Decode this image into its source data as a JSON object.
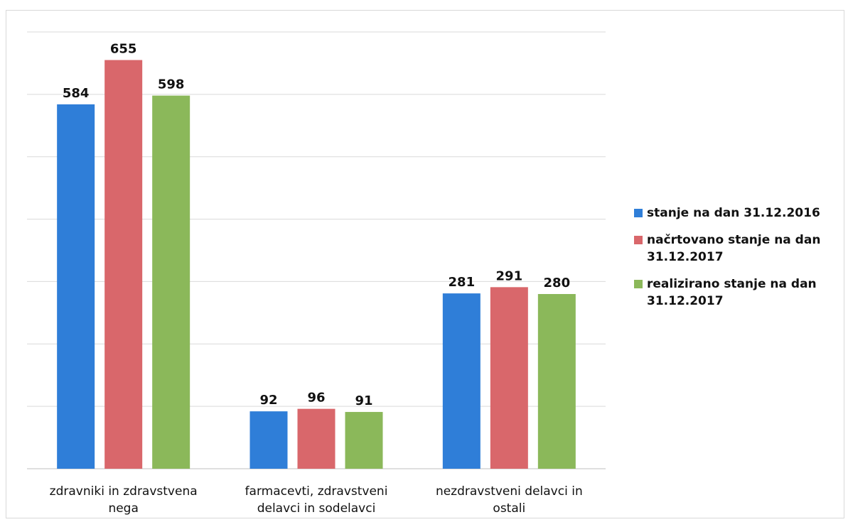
{
  "chart_data": {
    "type": "bar",
    "title": "",
    "xlabel": "",
    "ylabel": "",
    "categories": [
      [
        "zdravniki in zdravstvena",
        "nega"
      ],
      [
        "farmacevti, zdravstveni",
        "delavci in sodelavci"
      ],
      [
        "nezdravstveni delavci in",
        "ostali"
      ]
    ],
    "series": [
      {
        "name": "stanje na dan 31.12.2016",
        "color": "#2f7ed8",
        "values": [
          584,
          92,
          281
        ]
      },
      {
        "name": "načrtovano stanje na dan 31.12.2017",
        "color": "#d9676b",
        "values": [
          655,
          96,
          291
        ]
      },
      {
        "name": "realizirano stanje na dan 31.12.2017",
        "color": "#8bb85a",
        "values": [
          598,
          91,
          280
        ]
      }
    ],
    "ylim": [
      0,
      700
    ],
    "grid": true,
    "data_labels": true,
    "legend_position": "right"
  }
}
